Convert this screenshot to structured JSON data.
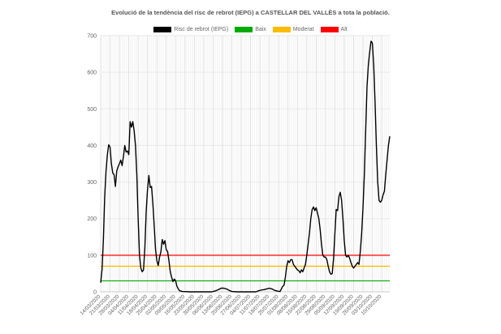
{
  "chart_data": {
    "type": "line",
    "title": "Evolució de la tendència del risc de rebrot (IEPG) a CASTELLAR DEL VALLÈS a tota la població.",
    "legend_placement": "top",
    "grid": true,
    "ylim": [
      0,
      700
    ],
    "yticks": [
      0,
      100,
      200,
      300,
      400,
      500,
      600,
      700
    ],
    "x_start": "2020-03-14",
    "x_end": "2020-10-16",
    "x_tick_labels": [
      "14/03/2020",
      "21/03/2020",
      "28/03/2020",
      "04/04/2020",
      "11/04/2020",
      "18/04/2020",
      "25/04/2020",
      "02/05/2020",
      "09/05/2020",
      "16/05/2020",
      "23/05/2020",
      "30/05/2020",
      "06/06/2020",
      "13/06/2020",
      "20/06/2020",
      "27/06/2020",
      "04/07/2020",
      "11/07/2020",
      "18/07/2020",
      "25/07/2020",
      "01/08/2020",
      "08/08/2020",
      "15/08/2020",
      "22/08/2020",
      "29/08/2020",
      "05/09/2020",
      "12/09/2020",
      "19/09/2020",
      "26/09/2020",
      "03/10/2020",
      "10/10/2020"
    ],
    "series": [
      {
        "name": "Risc de rebrot (IEPG)",
        "color": "#000000",
        "points": [
          [
            "2020-03-14",
            25
          ],
          [
            "2020-03-15",
            60
          ],
          [
            "2020-03-16",
            140
          ],
          [
            "2020-03-17",
            260
          ],
          [
            "2020-03-18",
            330
          ],
          [
            "2020-03-19",
            375
          ],
          [
            "2020-03-20",
            402
          ],
          [
            "2020-03-21",
            395
          ],
          [
            "2020-03-22",
            350
          ],
          [
            "2020-03-23",
            325
          ],
          [
            "2020-03-24",
            320
          ],
          [
            "2020-03-25",
            288
          ],
          [
            "2020-03-26",
            330
          ],
          [
            "2020-03-27",
            342
          ],
          [
            "2020-03-28",
            350
          ],
          [
            "2020-03-29",
            360
          ],
          [
            "2020-03-30",
            345
          ],
          [
            "2020-03-31",
            370
          ],
          [
            "2020-04-01",
            400
          ],
          [
            "2020-04-02",
            382
          ],
          [
            "2020-04-03",
            385
          ],
          [
            "2020-04-04",
            375
          ],
          [
            "2020-04-05",
            465
          ],
          [
            "2020-04-06",
            450
          ],
          [
            "2020-04-07",
            465
          ],
          [
            "2020-04-08",
            440
          ],
          [
            "2020-04-09",
            400
          ],
          [
            "2020-04-10",
            320
          ],
          [
            "2020-04-11",
            200
          ],
          [
            "2020-04-12",
            100
          ],
          [
            "2020-04-13",
            65
          ],
          [
            "2020-04-14",
            55
          ],
          [
            "2020-04-15",
            60
          ],
          [
            "2020-04-16",
            120
          ],
          [
            "2020-04-17",
            220
          ],
          [
            "2020-04-18",
            280
          ],
          [
            "2020-04-19",
            318
          ],
          [
            "2020-04-20",
            285
          ],
          [
            "2020-04-21",
            288
          ],
          [
            "2020-04-22",
            240
          ],
          [
            "2020-04-23",
            180
          ],
          [
            "2020-04-24",
            115
          ],
          [
            "2020-04-25",
            85
          ],
          [
            "2020-04-26",
            72
          ],
          [
            "2020-04-27",
            95
          ],
          [
            "2020-04-28",
            110
          ],
          [
            "2020-04-29",
            143
          ],
          [
            "2020-04-30",
            130
          ],
          [
            "2020-05-01",
            140
          ],
          [
            "2020-05-02",
            115
          ],
          [
            "2020-05-03",
            110
          ],
          [
            "2020-05-04",
            85
          ],
          [
            "2020-05-05",
            55
          ],
          [
            "2020-05-06",
            40
          ],
          [
            "2020-05-07",
            28
          ],
          [
            "2020-05-08",
            35
          ],
          [
            "2020-05-09",
            30
          ],
          [
            "2020-05-10",
            15
          ],
          [
            "2020-05-11",
            8
          ],
          [
            "2020-05-12",
            3
          ],
          [
            "2020-05-13",
            2
          ],
          [
            "2020-05-14",
            1
          ],
          [
            "2020-05-20",
            0
          ],
          [
            "2020-06-05",
            0
          ],
          [
            "2020-06-08",
            3
          ],
          [
            "2020-06-10",
            6
          ],
          [
            "2020-06-12",
            10
          ],
          [
            "2020-06-14",
            10
          ],
          [
            "2020-06-16",
            8
          ],
          [
            "2020-06-18",
            4
          ],
          [
            "2020-06-20",
            1
          ],
          [
            "2020-06-24",
            0
          ],
          [
            "2020-07-08",
            0
          ],
          [
            "2020-07-10",
            3
          ],
          [
            "2020-07-12",
            5
          ],
          [
            "2020-07-14",
            6
          ],
          [
            "2020-07-16",
            8
          ],
          [
            "2020-07-18",
            10
          ],
          [
            "2020-07-20",
            8
          ],
          [
            "2020-07-22",
            4
          ],
          [
            "2020-07-24",
            2
          ],
          [
            "2020-07-26",
            1
          ],
          [
            "2020-07-27",
            8
          ],
          [
            "2020-07-28",
            15
          ],
          [
            "2020-07-29",
            18
          ],
          [
            "2020-07-30",
            40
          ],
          [
            "2020-07-31",
            70
          ],
          [
            "2020-08-01",
            85
          ],
          [
            "2020-08-02",
            80
          ],
          [
            "2020-08-03",
            88
          ],
          [
            "2020-08-04",
            88
          ],
          [
            "2020-08-05",
            75
          ],
          [
            "2020-08-06",
            70
          ],
          [
            "2020-08-07",
            65
          ],
          [
            "2020-08-08",
            60
          ],
          [
            "2020-08-09",
            58
          ],
          [
            "2020-08-10",
            52
          ],
          [
            "2020-08-11",
            60
          ],
          [
            "2020-08-12",
            55
          ],
          [
            "2020-08-13",
            65
          ],
          [
            "2020-08-14",
            75
          ],
          [
            "2020-08-15",
            100
          ],
          [
            "2020-08-16",
            130
          ],
          [
            "2020-08-17",
            160
          ],
          [
            "2020-08-18",
            200
          ],
          [
            "2020-08-19",
            225
          ],
          [
            "2020-08-20",
            232
          ],
          [
            "2020-08-21",
            222
          ],
          [
            "2020-08-22",
            230
          ],
          [
            "2020-08-23",
            215
          ],
          [
            "2020-08-24",
            200
          ],
          [
            "2020-08-25",
            170
          ],
          [
            "2020-08-26",
            130
          ],
          [
            "2020-08-27",
            100
          ],
          [
            "2020-08-28",
            95
          ],
          [
            "2020-08-29",
            95
          ],
          [
            "2020-08-30",
            88
          ],
          [
            "2020-08-31",
            70
          ],
          [
            "2020-09-01",
            55
          ],
          [
            "2020-09-02",
            48
          ],
          [
            "2020-09-03",
            50
          ],
          [
            "2020-09-04",
            90
          ],
          [
            "2020-09-05",
            160
          ],
          [
            "2020-09-06",
            225
          ],
          [
            "2020-09-07",
            222
          ],
          [
            "2020-09-08",
            260
          ],
          [
            "2020-09-09",
            272
          ],
          [
            "2020-09-10",
            250
          ],
          [
            "2020-09-11",
            200
          ],
          [
            "2020-09-12",
            140
          ],
          [
            "2020-09-13",
            100
          ],
          [
            "2020-09-14",
            95
          ],
          [
            "2020-09-15",
            100
          ],
          [
            "2020-09-16",
            92
          ],
          [
            "2020-09-17",
            80
          ],
          [
            "2020-09-18",
            70
          ],
          [
            "2020-09-19",
            65
          ],
          [
            "2020-09-20",
            70
          ],
          [
            "2020-09-21",
            75
          ],
          [
            "2020-09-22",
            80
          ],
          [
            "2020-09-23",
            75
          ],
          [
            "2020-09-24",
            110
          ],
          [
            "2020-09-25",
            160
          ],
          [
            "2020-09-26",
            230
          ],
          [
            "2020-09-27",
            320
          ],
          [
            "2020-09-28",
            440
          ],
          [
            "2020-09-29",
            560
          ],
          [
            "2020-09-30",
            620
          ],
          [
            "2020-10-01",
            655
          ],
          [
            "2020-10-02",
            685
          ],
          [
            "2020-10-03",
            680
          ],
          [
            "2020-10-04",
            620
          ],
          [
            "2020-10-05",
            520
          ],
          [
            "2020-10-06",
            400
          ],
          [
            "2020-10-07",
            300
          ],
          [
            "2020-10-08",
            250
          ],
          [
            "2020-10-09",
            245
          ],
          [
            "2020-10-10",
            250
          ],
          [
            "2020-10-11",
            265
          ],
          [
            "2020-10-12",
            275
          ],
          [
            "2020-10-13",
            320
          ],
          [
            "2020-10-14",
            360
          ],
          [
            "2020-10-15",
            400
          ],
          [
            "2020-10-16",
            425
          ]
        ]
      },
      {
        "name": "Baix",
        "color": "#00aa00",
        "value": 30
      },
      {
        "name": "Moderat",
        "color": "#ffbb00",
        "value": 70
      },
      {
        "name": "Alt",
        "color": "#ff0000",
        "value": 100
      }
    ]
  }
}
